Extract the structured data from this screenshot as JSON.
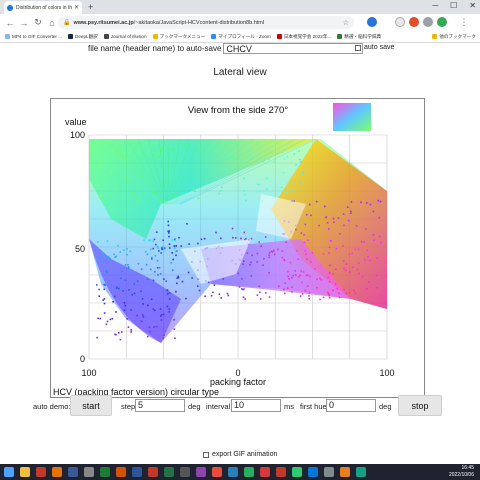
{
  "browser": {
    "tab_title": "Distribution of colors in the HCV",
    "url_host": "www.psy.ritsumei.ac.jp",
    "url_path": "/~akitaoka/JavaScript-HCVcontent-distribution8b.html",
    "bookmarks": [
      "MP4 to GIF Converter ...",
      "DeepL翻訳",
      "Journal of Illusion",
      "ブックマークメニュー",
      "マイプロフィール · Zoom",
      "日本視覚学会 2022年...",
      "精選・脳科学辞典"
    ],
    "bookmarks_right": "他のブックマーク"
  },
  "page": {
    "filename_label": "file name (header name) to auto-save",
    "filename_value": "CHCV",
    "autosave_label": "auto save",
    "section_title": "Lateral view",
    "plot": {
      "title": "View from the side 270°",
      "ylabel": "value",
      "xlabel": "packing factor",
      "caption": "HCV (packing factor version) circular type",
      "yticks": [
        "100",
        "50",
        "0"
      ],
      "xticks": [
        "100",
        "0",
        "100"
      ]
    },
    "controls": {
      "auto_demo_label": "auto demo:",
      "start_label": "start",
      "step_label": "step",
      "step_value": "5",
      "deg1": "deg",
      "interval_label": "interval",
      "interval_value": "10",
      "ms_label": "ms",
      "first_hue_label": "first hue",
      "first_hue_value": "0",
      "deg2": "deg",
      "stop_label": "stop",
      "export_gif_label": "export GIF animation"
    }
  },
  "taskbar": {
    "time": "16:45",
    "date": "2022/10/06"
  },
  "colors": {
    "plot_border": "#888888",
    "grid": "#c8c8c8",
    "accent": "#1a73e8"
  }
}
